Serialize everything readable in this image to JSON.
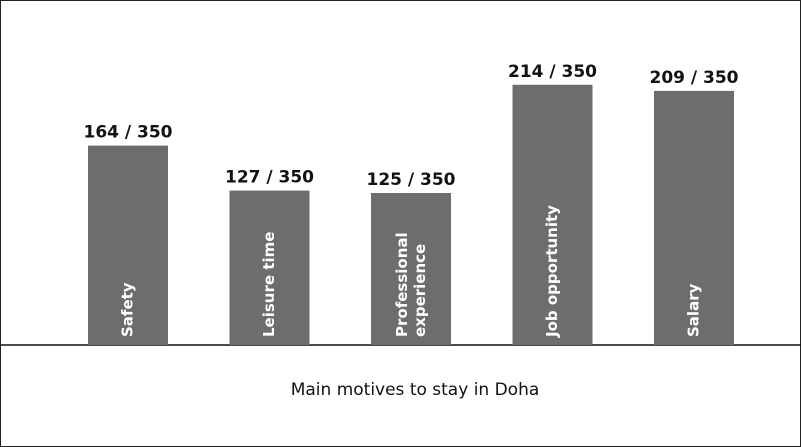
{
  "chart_data": {
    "type": "bar",
    "title": "Main motives to stay in Doha",
    "categories": [
      "Safety",
      "Leisure time",
      "Professional experience",
      "Job opportunity",
      "Salary"
    ],
    "values": [
      164,
      127,
      125,
      214,
      209
    ],
    "value_labels": [
      "164 / 350",
      "127 / 350",
      "125 / 350",
      "214 / 350",
      "209 / 350"
    ],
    "color": "#6b6e6b",
    "ylim": [
      0,
      250
    ]
  }
}
